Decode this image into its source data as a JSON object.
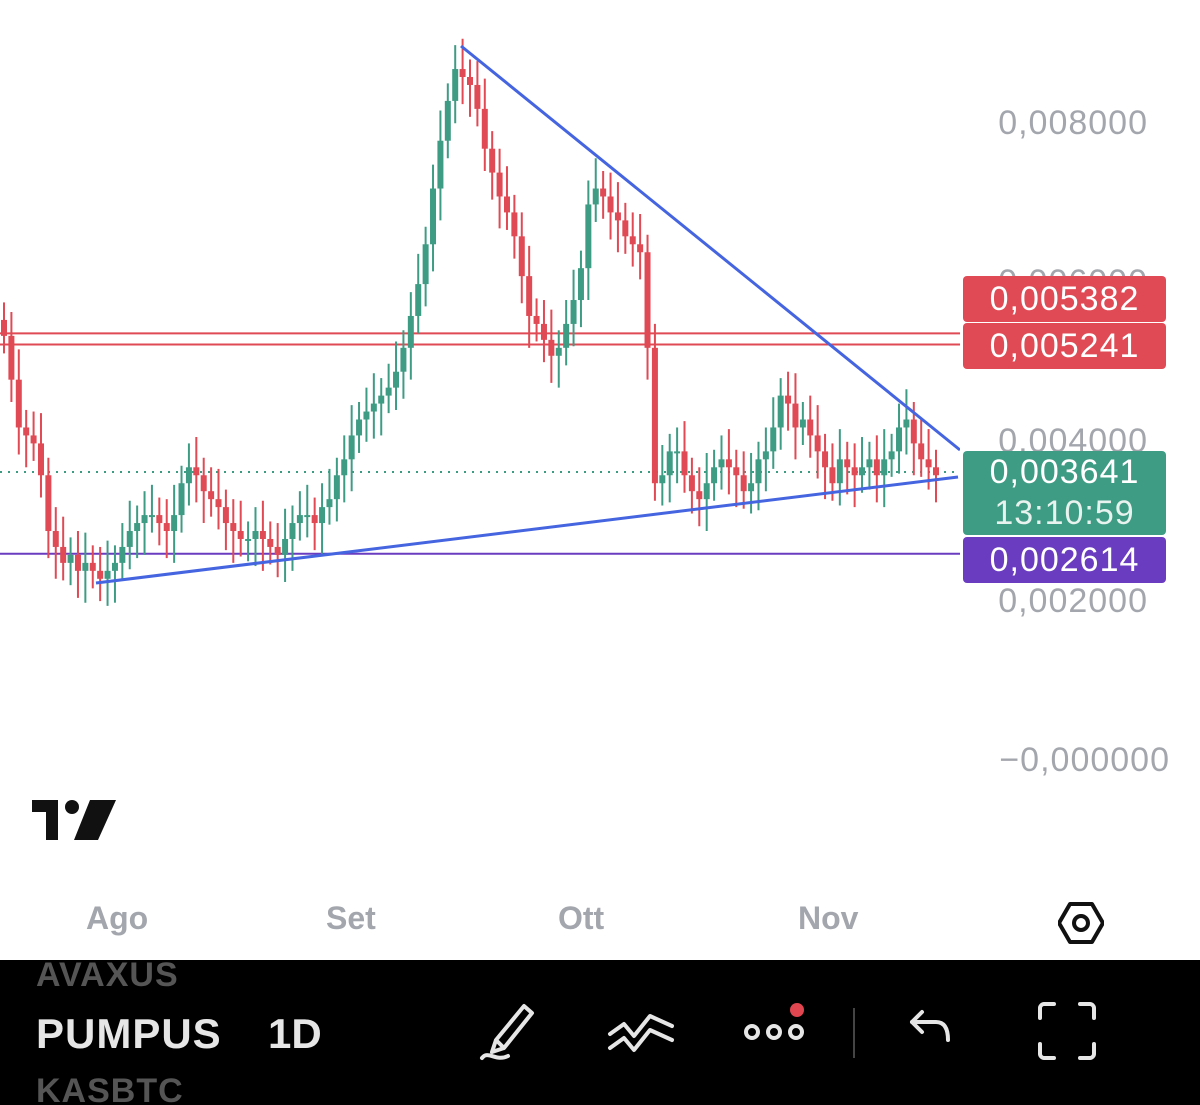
{
  "chart_data": {
    "type": "candlestick",
    "x_ticks": [
      "Ago",
      "Set",
      "Ott",
      "Nov"
    ],
    "y_ticks": [
      "0,008000",
      "0,006000",
      "0,004000",
      "0,002000",
      "−0,000000"
    ],
    "ylim": [
      0,
      0.009
    ],
    "grid": false,
    "colors": {
      "up": "#3f9c84",
      "down": "#df4a55",
      "trendline": "#4564e0",
      "support": "#6a3cc0",
      "resistance": "#d8434c"
    },
    "candles_close": [
      0.00535,
      0.0048,
      0.0042,
      0.0041,
      0.004,
      0.0036,
      0.0029,
      0.0027,
      0.0025,
      0.0026,
      0.0024,
      0.0025,
      0.0024,
      0.0023,
      0.0024,
      0.0025,
      0.0027,
      0.0029,
      0.003,
      0.0031,
      0.0031,
      0.003,
      0.0029,
      0.0031,
      0.0035,
      0.0037,
      0.0036,
      0.0034,
      0.0033,
      0.0032,
      0.003,
      0.0029,
      0.0028,
      0.0028,
      0.0029,
      0.0028,
      0.0027,
      0.0026,
      0.0028,
      0.003,
      0.0031,
      0.0031,
      0.003,
      0.0032,
      0.0033,
      0.0036,
      0.0038,
      0.0041,
      0.0043,
      0.0044,
      0.0045,
      0.0046,
      0.0047,
      0.0049,
      0.0052,
      0.0056,
      0.006,
      0.0065,
      0.0072,
      0.0078,
      0.0083,
      0.0087,
      0.0086,
      0.0085,
      0.0082,
      0.0077,
      0.0074,
      0.0071,
      0.0069,
      0.0066,
      0.0061,
      0.0056,
      0.0055,
      0.0053,
      0.0051,
      0.0052,
      0.0055,
      0.0058,
      0.0062,
      0.007,
      0.0072,
      0.0071,
      0.0069,
      0.0068,
      0.0066,
      0.0065,
      0.0064,
      0.0052,
      0.0035,
      0.0036,
      0.0039,
      0.0039,
      0.0036,
      0.0034,
      0.0033,
      0.0035,
      0.0037,
      0.0038,
      0.0037,
      0.0036,
      0.0034,
      0.0035,
      0.0038,
      0.0039,
      0.0042,
      0.0046,
      0.0045,
      0.0042,
      0.0043,
      0.0041,
      0.0039,
      0.0037,
      0.0035,
      0.0038,
      0.0037,
      0.0036,
      0.0037,
      0.0038,
      0.0036,
      0.0038,
      0.0039,
      0.0042,
      0.0043,
      0.004,
      0.0038,
      0.0037,
      0.0036
    ],
    "trendlines": [
      {
        "from": [
          "Ago",
          0.0024
        ],
        "to": [
          "Nov",
          0.0036
        ]
      },
      {
        "from": [
          "Set",
          0.0087
        ],
        "to": [
          "Nov",
          0.0039
        ]
      }
    ],
    "horizontal_levels": [
      {
        "value": 0.005382,
        "label": "0,005382",
        "color": "#df4a55"
      },
      {
        "value": 0.005241,
        "label": "0,005241",
        "color": "#df4a55"
      },
      {
        "value": 0.002614,
        "label": "0,002614",
        "color": "#6a3cc0"
      }
    ],
    "last_price": {
      "value": 0.003641,
      "label": "0,003641",
      "countdown": "13:10:59",
      "color": "#3f9c84"
    }
  },
  "toolbar": {
    "symbol": "PUMPUS",
    "symbol_prev": "AVAXUS",
    "symbol_next": "KASBTC",
    "interval": "1D"
  },
  "icons": [
    "tradingview-logo",
    "settings-hexagon-icon",
    "brush-icon",
    "trendline-tools-icon",
    "more-dots-icon",
    "undo-icon",
    "fullscreen-icon"
  ]
}
